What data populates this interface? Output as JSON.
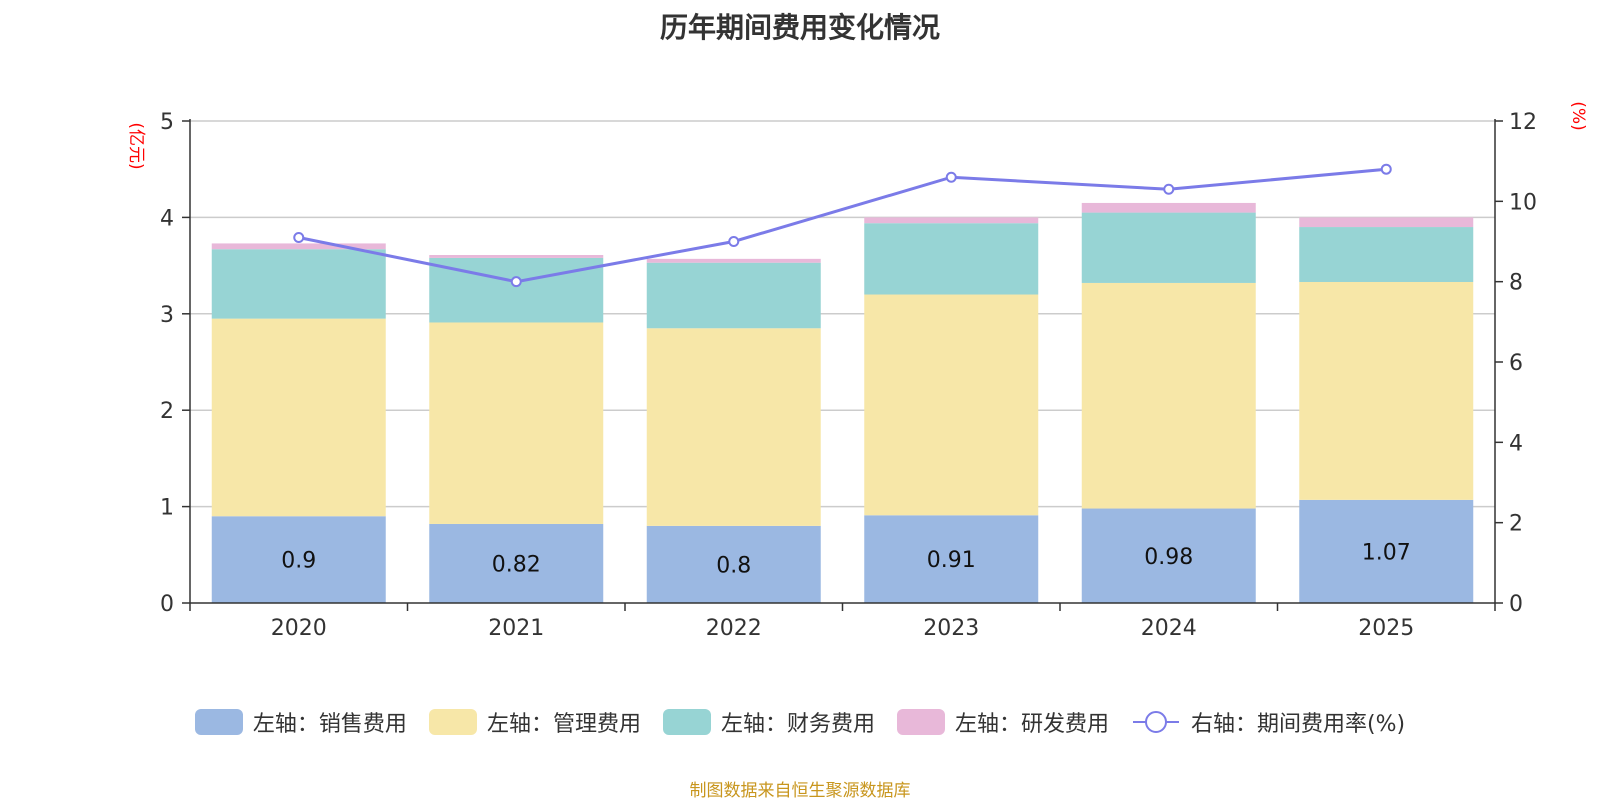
{
  "chart_data": {
    "type": "bar",
    "stacked": true,
    "title": "历年期间费用变化情况",
    "categories": [
      "2020",
      "2021",
      "2022",
      "2023",
      "2024",
      "2025"
    ],
    "left_axis": {
      "unit": "(亿元)",
      "ylim": [
        0,
        5
      ],
      "ticks": [
        "0",
        "1",
        "2",
        "3",
        "4",
        "5"
      ]
    },
    "right_axis": {
      "unit": "(%)",
      "ylim": [
        0,
        12
      ],
      "ticks": [
        "0",
        "2",
        "4",
        "6",
        "8",
        "10",
        "12"
      ]
    },
    "series": [
      {
        "name": "左轴：销售费用",
        "type": "bar",
        "axis": "left",
        "color": "#9bb8e2",
        "values": [
          0.9,
          0.82,
          0.8,
          0.91,
          0.98,
          1.07
        ],
        "labels": [
          "0.9",
          "0.82",
          "0.8",
          "0.91",
          "0.98",
          "1.07"
        ]
      },
      {
        "name": "左轴：管理费用",
        "type": "bar",
        "axis": "left",
        "color": "#f7e7a8",
        "values": [
          2.05,
          2.09,
          2.05,
          2.29,
          2.34,
          2.26
        ]
      },
      {
        "name": "左轴：财务费用",
        "type": "bar",
        "axis": "left",
        "color": "#97d4d4",
        "values": [
          0.72,
          0.67,
          0.68,
          0.74,
          0.73,
          0.57
        ]
      },
      {
        "name": "左轴：研发费用",
        "type": "bar",
        "axis": "left",
        "color": "#e8b8d9",
        "values": [
          0.06,
          0.03,
          0.04,
          0.06,
          0.1,
          0.1
        ]
      },
      {
        "name": "右轴：期间费用率(%)",
        "type": "line",
        "axis": "right",
        "color": "#7b7be8",
        "values": [
          9.1,
          8.0,
          9.0,
          10.6,
          10.3,
          10.8
        ]
      }
    ]
  },
  "footer": {
    "source": "制图数据来自恒生聚源数据库"
  },
  "colors": {
    "unit_label": "#ff0000",
    "grid": "#cccccc",
    "axis": "#333333"
  }
}
